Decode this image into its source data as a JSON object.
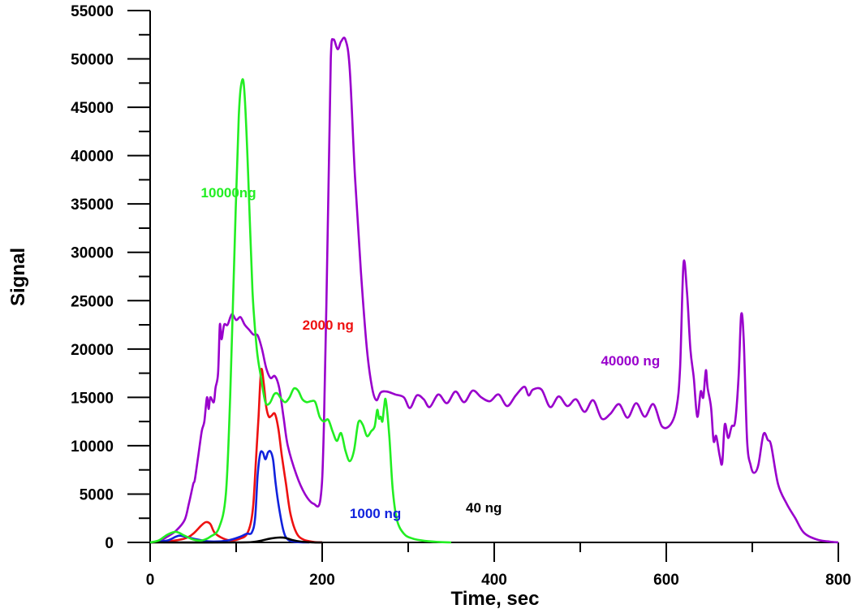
{
  "chart_data": {
    "type": "line",
    "title": "",
    "xlabel": "Time, sec",
    "ylabel": "Signal",
    "xlim": [
      0,
      800
    ],
    "ylim": [
      0,
      55000
    ],
    "x_ticks": [
      0,
      200,
      400,
      600,
      800
    ],
    "y_ticks": [
      0,
      5000,
      10000,
      15000,
      20000,
      25000,
      30000,
      35000,
      40000,
      45000,
      50000,
      55000
    ],
    "grid": false,
    "legend": "none",
    "series": [
      {
        "name": "40000 ng",
        "color": "#9900cc",
        "points": [
          [
            0,
            0
          ],
          [
            10,
            100
          ],
          [
            20,
            600
          ],
          [
            30,
            1200
          ],
          [
            40,
            2300
          ],
          [
            45,
            4000
          ],
          [
            50,
            6000
          ],
          [
            52,
            6500
          ],
          [
            56,
            9000
          ],
          [
            60,
            11500
          ],
          [
            63,
            12500
          ],
          [
            66,
            15000
          ],
          [
            68,
            13800
          ],
          [
            70,
            15000
          ],
          [
            74,
            14500
          ],
          [
            76,
            16000
          ],
          [
            79,
            17500
          ],
          [
            81,
            22500
          ],
          [
            83,
            21000
          ],
          [
            86,
            22500
          ],
          [
            90,
            22500
          ],
          [
            95,
            23600
          ],
          [
            100,
            23000
          ],
          [
            105,
            23300
          ],
          [
            110,
            22500
          ],
          [
            115,
            22000
          ],
          [
            120,
            21500
          ],
          [
            125,
            21400
          ],
          [
            130,
            20000
          ],
          [
            135,
            18000
          ],
          [
            140,
            17000
          ],
          [
            145,
            17200
          ],
          [
            150,
            16000
          ],
          [
            155,
            13000
          ],
          [
            160,
            10000
          ],
          [
            170,
            7000
          ],
          [
            180,
            5000
          ],
          [
            190,
            4000
          ],
          [
            198,
            4500
          ],
          [
            202,
            12000
          ],
          [
            207,
            35000
          ],
          [
            210,
            50000
          ],
          [
            213,
            52000
          ],
          [
            218,
            51000
          ],
          [
            222,
            51800
          ],
          [
            227,
            52000
          ],
          [
            232,
            49000
          ],
          [
            238,
            38000
          ],
          [
            245,
            28000
          ],
          [
            252,
            20000
          ],
          [
            258,
            16000
          ],
          [
            263,
            14700
          ],
          [
            268,
            15500
          ],
          [
            275,
            15600
          ],
          [
            285,
            15300
          ],
          [
            295,
            15000
          ],
          [
            302,
            13900
          ],
          [
            310,
            15200
          ],
          [
            318,
            14800
          ],
          [
            325,
            14000
          ],
          [
            335,
            15300
          ],
          [
            345,
            14400
          ],
          [
            355,
            15600
          ],
          [
            365,
            14500
          ],
          [
            375,
            15700
          ],
          [
            385,
            15000
          ],
          [
            395,
            14600
          ],
          [
            405,
            15300
          ],
          [
            415,
            14100
          ],
          [
            425,
            15200
          ],
          [
            435,
            16100
          ],
          [
            440,
            15200
          ],
          [
            445,
            15800
          ],
          [
            455,
            15800
          ],
          [
            465,
            14000
          ],
          [
            475,
            15100
          ],
          [
            485,
            14100
          ],
          [
            495,
            14800
          ],
          [
            505,
            13500
          ],
          [
            515,
            14700
          ],
          [
            525,
            12800
          ],
          [
            535,
            13300
          ],
          [
            545,
            14300
          ],
          [
            555,
            12900
          ],
          [
            565,
            14400
          ],
          [
            575,
            13000
          ],
          [
            585,
            14300
          ],
          [
            595,
            12000
          ],
          [
            605,
            12200
          ],
          [
            612,
            14000
          ],
          [
            616,
            18000
          ],
          [
            620,
            28800
          ],
          [
            624,
            26000
          ],
          [
            628,
            20000
          ],
          [
            632,
            17000
          ],
          [
            636,
            13000
          ],
          [
            640,
            15600
          ],
          [
            643,
            15000
          ],
          [
            646,
            17800
          ],
          [
            648,
            16000
          ],
          [
            652,
            14000
          ],
          [
            655,
            10500
          ],
          [
            658,
            11000
          ],
          [
            662,
            9000
          ],
          [
            665,
            8200
          ],
          [
            668,
            12200
          ],
          [
            672,
            10800
          ],
          [
            676,
            12000
          ],
          [
            680,
            12500
          ],
          [
            684,
            17000
          ],
          [
            687,
            23500
          ],
          [
            690,
            21000
          ],
          [
            694,
            10500
          ],
          [
            698,
            8000
          ],
          [
            702,
            7200
          ],
          [
            707,
            8000
          ],
          [
            713,
            11200
          ],
          [
            718,
            10600
          ],
          [
            722,
            10000
          ],
          [
            730,
            6000
          ],
          [
            740,
            4000
          ],
          [
            750,
            2500
          ],
          [
            760,
            1000
          ],
          [
            775,
            300
          ],
          [
            790,
            80
          ],
          [
            800,
            0
          ]
        ]
      },
      {
        "name": "10000ng",
        "color": "#22ee22",
        "points": [
          [
            0,
            0
          ],
          [
            10,
            200
          ],
          [
            20,
            800
          ],
          [
            30,
            1100
          ],
          [
            40,
            700
          ],
          [
            50,
            300
          ],
          [
            60,
            200
          ],
          [
            70,
            600
          ],
          [
            80,
            1500
          ],
          [
            88,
            5000
          ],
          [
            93,
            15000
          ],
          [
            98,
            30000
          ],
          [
            103,
            44000
          ],
          [
            107,
            47800
          ],
          [
            110,
            46000
          ],
          [
            114,
            38000
          ],
          [
            119,
            26000
          ],
          [
            124,
            20000
          ],
          [
            129,
            17000
          ],
          [
            134,
            14500
          ],
          [
            139,
            14400
          ],
          [
            144,
            15300
          ],
          [
            148,
            15400
          ],
          [
            152,
            14900
          ],
          [
            157,
            14500
          ],
          [
            162,
            15000
          ],
          [
            167,
            15900
          ],
          [
            172,
            15700
          ],
          [
            177,
            14800
          ],
          [
            182,
            14500
          ],
          [
            187,
            14600
          ],
          [
            192,
            14500
          ],
          [
            197,
            13000
          ],
          [
            202,
            12500
          ],
          [
            207,
            12700
          ],
          [
            212,
            11500
          ],
          [
            217,
            10500
          ],
          [
            222,
            11300
          ],
          [
            227,
            9500
          ],
          [
            232,
            8400
          ],
          [
            237,
            9500
          ],
          [
            242,
            12400
          ],
          [
            247,
            12200
          ],
          [
            252,
            11000
          ],
          [
            257,
            11500
          ],
          [
            261,
            12000
          ],
          [
            264,
            13700
          ],
          [
            266,
            12800
          ],
          [
            268,
            13000
          ],
          [
            270,
            12500
          ],
          [
            272,
            14000
          ],
          [
            274,
            14700
          ],
          [
            278,
            11000
          ],
          [
            282,
            5500
          ],
          [
            287,
            2300
          ],
          [
            295,
            900
          ],
          [
            305,
            400
          ],
          [
            320,
            150
          ],
          [
            335,
            50
          ],
          [
            350,
            0
          ]
        ]
      },
      {
        "name": "2000 ng",
        "color": "#ee1111",
        "points": [
          [
            0,
            0
          ],
          [
            20,
            100
          ],
          [
            40,
            400
          ],
          [
            50,
            900
          ],
          [
            60,
            1800
          ],
          [
            65,
            2100
          ],
          [
            70,
            1900
          ],
          [
            75,
            1000
          ],
          [
            85,
            400
          ],
          [
            95,
            200
          ],
          [
            105,
            400
          ],
          [
            112,
            800
          ],
          [
            117,
            2000
          ],
          [
            120,
            4000
          ],
          [
            123,
            8500
          ],
          [
            126,
            13000
          ],
          [
            129,
            17800
          ],
          [
            132,
            16500
          ],
          [
            135,
            14000
          ],
          [
            138,
            13000
          ],
          [
            141,
            13100
          ],
          [
            145,
            13300
          ],
          [
            149,
            11800
          ],
          [
            153,
            9000
          ],
          [
            158,
            6000
          ],
          [
            163,
            3000
          ],
          [
            170,
            1000
          ],
          [
            178,
            300
          ],
          [
            190,
            50
          ],
          [
            200,
            0
          ]
        ]
      },
      {
        "name": "1000 ng",
        "color": "#1122dd",
        "points": [
          [
            0,
            0
          ],
          [
            20,
            200
          ],
          [
            30,
            600
          ],
          [
            35,
            700
          ],
          [
            45,
            500
          ],
          [
            55,
            300
          ],
          [
            70,
            100
          ],
          [
            90,
            200
          ],
          [
            105,
            600
          ],
          [
            112,
            900
          ],
          [
            118,
            1000
          ],
          [
            122,
            2500
          ],
          [
            125,
            7000
          ],
          [
            128,
            9200
          ],
          [
            131,
            9300
          ],
          [
            134,
            8600
          ],
          [
            137,
            9300
          ],
          [
            140,
            9400
          ],
          [
            143,
            8500
          ],
          [
            146,
            6000
          ],
          [
            150,
            3500
          ],
          [
            155,
            1200
          ],
          [
            160,
            300
          ],
          [
            170,
            50
          ],
          [
            185,
            0
          ]
        ]
      },
      {
        "name": "40 ng",
        "color": "#000000",
        "points": [
          [
            0,
            0
          ],
          [
            100,
            0
          ],
          [
            120,
            50
          ],
          [
            130,
            200
          ],
          [
            140,
            400
          ],
          [
            150,
            500
          ],
          [
            158,
            450
          ],
          [
            165,
            250
          ],
          [
            175,
            80
          ],
          [
            190,
            0
          ],
          [
            200,
            0
          ]
        ]
      }
    ],
    "labels": [
      {
        "text": "10000ng",
        "series": "10000ng",
        "x": 59,
        "y": 35700
      },
      {
        "text": "2000 ng",
        "series": "2000 ng",
        "x": 177,
        "y": 22000
      },
      {
        "text": "40000 ng",
        "series": "40000 ng",
        "x": 524,
        "y": 18300
      },
      {
        "text": "1000 ng",
        "series": "1000 ng",
        "x": 232,
        "y": 2500
      },
      {
        "text": "40 ng",
        "series": "40 ng",
        "x": 367,
        "y": 3100
      }
    ]
  }
}
